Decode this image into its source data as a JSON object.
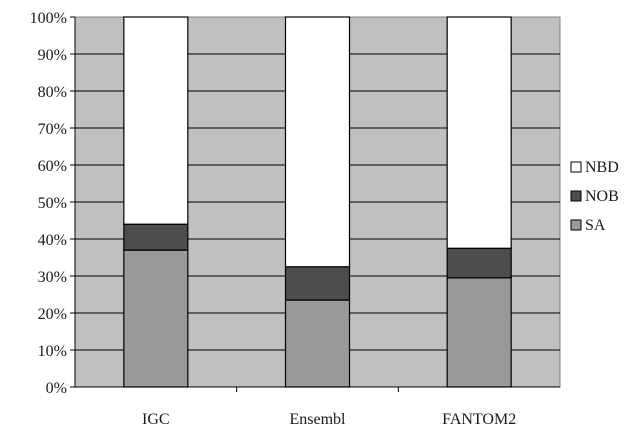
{
  "chart_data": {
    "type": "bar",
    "stacked": true,
    "percent": true,
    "title": "",
    "xlabel": "",
    "ylabel": "",
    "ylim": [
      0,
      100
    ],
    "y_ticks": [
      "0%",
      "10%",
      "20%",
      "30%",
      "40%",
      "50%",
      "60%",
      "70%",
      "80%",
      "90%",
      "100%"
    ],
    "grid": true,
    "legend_position": "right",
    "categories": [
      "IGC",
      "Ensembl",
      "FANTOM2"
    ],
    "series": [
      {
        "name": "SA",
        "values": [
          37,
          23.5,
          29.5
        ],
        "color": "#999999"
      },
      {
        "name": "NOB",
        "values": [
          7,
          9,
          8
        ],
        "color": "#4d4d4d"
      },
      {
        "name": "NBD",
        "values": [
          56,
          67.5,
          62.5
        ],
        "color": "#ffffff"
      }
    ],
    "legend_order": [
      "NBD",
      "NOB",
      "SA"
    ],
    "plot_background": "#c0c0c0"
  }
}
